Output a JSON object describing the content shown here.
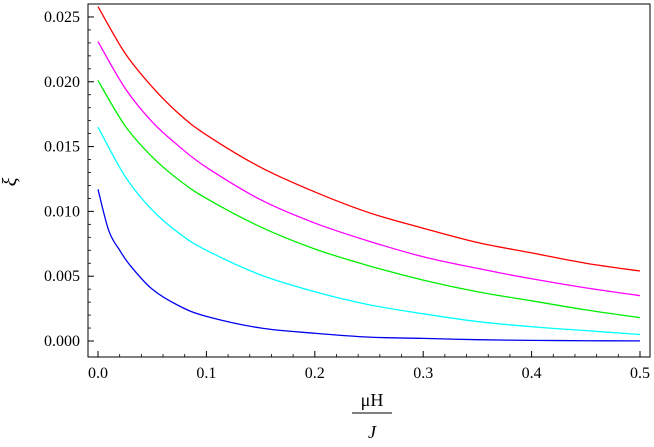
{
  "chart_data": {
    "type": "line",
    "title": "",
    "xlabel_numerator": "μH",
    "xlabel_denominator": "J",
    "ylabel": "ξ",
    "xlim": [
      0,
      0.5
    ],
    "ylim": [
      0,
      0.026
    ],
    "xticks": [
      0.0,
      0.1,
      0.2,
      0.3,
      0.4,
      0.5
    ],
    "xtick_labels": [
      "0.0",
      "0.1",
      "0.2",
      "0.3",
      "0.4",
      "0.5"
    ],
    "yticks": [
      0.0,
      0.005,
      0.01,
      0.015,
      0.02,
      0.025
    ],
    "ytick_labels": [
      "0.000",
      "0.005",
      "0.010",
      "0.015",
      "0.020",
      "0.025"
    ],
    "grid": false,
    "legend": "none",
    "series": [
      {
        "color": "#ff0000",
        "x": [
          0,
          0.025,
          0.05,
          0.075,
          0.1,
          0.15,
          0.2,
          0.25,
          0.3,
          0.35,
          0.4,
          0.45,
          0.5
        ],
        "y": [
          0.0258,
          0.0222,
          0.0196,
          0.0175,
          0.0159,
          0.0134,
          0.0115,
          0.0099,
          0.0087,
          0.0076,
          0.0068,
          0.006,
          0.0054
        ]
      },
      {
        "color": "#ff00ff",
        "x": [
          0,
          0.025,
          0.05,
          0.075,
          0.1,
          0.15,
          0.2,
          0.25,
          0.3,
          0.35,
          0.4,
          0.45,
          0.5
        ],
        "y": [
          0.0231,
          0.0195,
          0.0169,
          0.015,
          0.0134,
          0.0109,
          0.0091,
          0.0077,
          0.0065,
          0.0056,
          0.0048,
          0.0041,
          0.0035
        ]
      },
      {
        "color": "#00ee00",
        "x": [
          0,
          0.025,
          0.05,
          0.075,
          0.1,
          0.15,
          0.2,
          0.25,
          0.3,
          0.35,
          0.4,
          0.45,
          0.5
        ],
        "y": [
          0.0201,
          0.0166,
          0.0142,
          0.0124,
          0.011,
          0.0088,
          0.0071,
          0.0058,
          0.0047,
          0.0038,
          0.0031,
          0.0024,
          0.0018
        ]
      },
      {
        "color": "#00ffff",
        "x": [
          0,
          0.025,
          0.05,
          0.075,
          0.1,
          0.15,
          0.2,
          0.25,
          0.3,
          0.35,
          0.4,
          0.45,
          0.5
        ],
        "y": [
          0.0165,
          0.0127,
          0.0101,
          0.0083,
          0.007,
          0.0051,
          0.0038,
          0.0028,
          0.0021,
          0.0015,
          0.0011,
          0.0008,
          0.0005
        ]
      },
      {
        "color": "#0000ee",
        "x": [
          0,
          0.01,
          0.02,
          0.03,
          0.05,
          0.075,
          0.1,
          0.15,
          0.2,
          0.25,
          0.3,
          0.35,
          0.4,
          0.45,
          0.5
        ],
        "y": [
          0.0117,
          0.0085,
          0.007,
          0.0058,
          0.004,
          0.0027,
          0.0019,
          0.001,
          0.0006,
          0.0003,
          0.0002,
          0.0001,
          5e-05,
          2e-05,
          1e-05
        ]
      }
    ]
  }
}
